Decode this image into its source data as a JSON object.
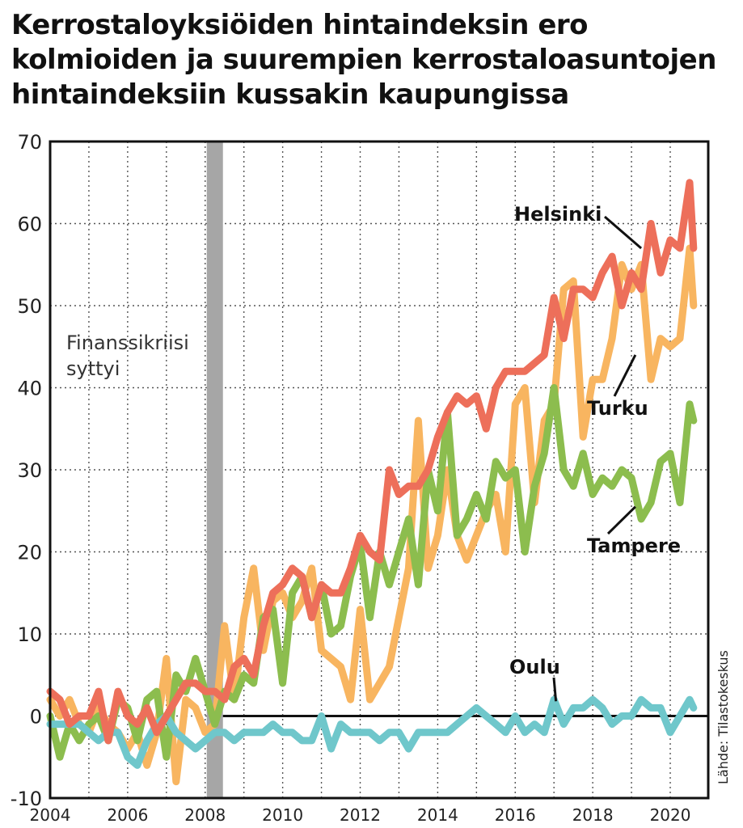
{
  "chart_data": {
    "type": "line",
    "title": "Kerrostaloyksiöiden hintaindeksin ero\nkolmioiden ja suurempien kerrostaloasuntojen\nhintaindeksiin kussakin kaupungissa",
    "xlabel": "",
    "ylabel": "",
    "xlim": [
      2004,
      2020.6
    ],
    "ylim": [
      -10,
      70
    ],
    "x_ticks": [
      "2004",
      "2006",
      "2008",
      "2010",
      "2012",
      "2014",
      "2016",
      "2018",
      "2020"
    ],
    "y_ticks": [
      "70",
      "60",
      "50",
      "40",
      "30",
      "20",
      "10",
      "0",
      "-10"
    ],
    "grid": true,
    "annotations": [
      {
        "text": "Finanssikriisi\nsyttyi",
        "x": 2008.25,
        "type": "band"
      }
    ],
    "source": "Lähde: Tilastokeskus",
    "series": [
      {
        "name": "Helsinki",
        "color": "#ed6f5a",
        "points": [
          [
            2004.0,
            3
          ],
          [
            2004.25,
            2
          ],
          [
            2004.5,
            -1
          ],
          [
            2004.75,
            0
          ],
          [
            2005.0,
            0
          ],
          [
            2005.25,
            3
          ],
          [
            2005.5,
            -3
          ],
          [
            2005.75,
            3
          ],
          [
            2006.0,
            0
          ],
          [
            2006.25,
            -1
          ],
          [
            2006.5,
            1
          ],
          [
            2006.75,
            -2
          ],
          [
            2007.0,
            0
          ],
          [
            2007.25,
            2
          ],
          [
            2007.5,
            4
          ],
          [
            2007.75,
            4
          ],
          [
            2008.0,
            3
          ],
          [
            2008.25,
            3
          ],
          [
            2008.5,
            2
          ],
          [
            2008.75,
            6
          ],
          [
            2009.0,
            7
          ],
          [
            2009.25,
            5
          ],
          [
            2009.5,
            11
          ],
          [
            2009.75,
            15
          ],
          [
            2010.0,
            16
          ],
          [
            2010.25,
            18
          ],
          [
            2010.5,
            17
          ],
          [
            2010.75,
            12
          ],
          [
            2011.0,
            16
          ],
          [
            2011.25,
            15
          ],
          [
            2011.5,
            15
          ],
          [
            2011.75,
            18
          ],
          [
            2012.0,
            22
          ],
          [
            2012.25,
            20
          ],
          [
            2012.5,
            19
          ],
          [
            2012.75,
            30
          ],
          [
            2013.0,
            27
          ],
          [
            2013.25,
            28
          ],
          [
            2013.5,
            28
          ],
          [
            2013.75,
            30
          ],
          [
            2014.0,
            34
          ],
          [
            2014.25,
            37
          ],
          [
            2014.5,
            39
          ],
          [
            2014.75,
            38
          ],
          [
            2015.0,
            39
          ],
          [
            2015.25,
            35
          ],
          [
            2015.5,
            40
          ],
          [
            2015.75,
            42
          ],
          [
            2016.0,
            42
          ],
          [
            2016.25,
            42
          ],
          [
            2016.5,
            43
          ],
          [
            2016.75,
            44
          ],
          [
            2017.0,
            51
          ],
          [
            2017.25,
            46
          ],
          [
            2017.5,
            52
          ],
          [
            2017.75,
            52
          ],
          [
            2018.0,
            51
          ],
          [
            2018.25,
            54
          ],
          [
            2018.5,
            56
          ],
          [
            2018.75,
            50
          ],
          [
            2019.0,
            54
          ],
          [
            2019.25,
            52
          ],
          [
            2019.5,
            60
          ],
          [
            2019.75,
            54
          ],
          [
            2020.0,
            58
          ],
          [
            2020.25,
            57
          ],
          [
            2020.5,
            65
          ],
          [
            2020.6,
            57
          ]
        ]
      },
      {
        "name": "Turku",
        "color": "#f8b560",
        "points": [
          [
            2004.0,
            2
          ],
          [
            2004.25,
            0
          ],
          [
            2004.5,
            2
          ],
          [
            2004.75,
            -1
          ],
          [
            2005.0,
            -2
          ],
          [
            2005.25,
            1
          ],
          [
            2005.5,
            -1
          ],
          [
            2005.75,
            -2
          ],
          [
            2006.0,
            -4
          ],
          [
            2006.25,
            -2
          ],
          [
            2006.5,
            -6
          ],
          [
            2006.75,
            -2
          ],
          [
            2007.0,
            7
          ],
          [
            2007.25,
            -8
          ],
          [
            2007.5,
            2
          ],
          [
            2007.75,
            1
          ],
          [
            2008.0,
            -2
          ],
          [
            2008.25,
            -1
          ],
          [
            2008.5,
            11
          ],
          [
            2008.75,
            2
          ],
          [
            2009.0,
            12
          ],
          [
            2009.25,
            18
          ],
          [
            2009.5,
            8
          ],
          [
            2009.75,
            14
          ],
          [
            2010.0,
            15
          ],
          [
            2010.25,
            12
          ],
          [
            2010.5,
            14
          ],
          [
            2010.75,
            18
          ],
          [
            2011.0,
            8
          ],
          [
            2011.25,
            7
          ],
          [
            2011.5,
            6
          ],
          [
            2011.75,
            2
          ],
          [
            2012.0,
            13
          ],
          [
            2012.25,
            2
          ],
          [
            2012.5,
            4
          ],
          [
            2012.75,
            6
          ],
          [
            2013.0,
            12
          ],
          [
            2013.25,
            18
          ],
          [
            2013.5,
            36
          ],
          [
            2013.75,
            18
          ],
          [
            2014.0,
            22
          ],
          [
            2014.25,
            30
          ],
          [
            2014.5,
            22
          ],
          [
            2014.75,
            19
          ],
          [
            2015.0,
            22
          ],
          [
            2015.25,
            25
          ],
          [
            2015.5,
            27
          ],
          [
            2015.75,
            20
          ],
          [
            2016.0,
            38
          ],
          [
            2016.25,
            40
          ],
          [
            2016.5,
            26
          ],
          [
            2016.75,
            36
          ],
          [
            2017.0,
            38
          ],
          [
            2017.25,
            52
          ],
          [
            2017.5,
            53
          ],
          [
            2017.75,
            34
          ],
          [
            2018.0,
            41
          ],
          [
            2018.25,
            41
          ],
          [
            2018.5,
            46
          ],
          [
            2018.75,
            55
          ],
          [
            2019.0,
            52
          ],
          [
            2019.25,
            55
          ],
          [
            2019.5,
            41
          ],
          [
            2019.75,
            46
          ],
          [
            2020.0,
            45
          ],
          [
            2020.25,
            46
          ],
          [
            2020.5,
            57
          ],
          [
            2020.6,
            50
          ]
        ]
      },
      {
        "name": "Tampere",
        "color": "#8cbd4e",
        "points": [
          [
            2004.0,
            0
          ],
          [
            2004.25,
            -5
          ],
          [
            2004.5,
            -1
          ],
          [
            2004.75,
            -3
          ],
          [
            2005.0,
            -1
          ],
          [
            2005.25,
            0
          ],
          [
            2005.5,
            -3
          ],
          [
            2005.75,
            2
          ],
          [
            2006.0,
            1
          ],
          [
            2006.25,
            -3
          ],
          [
            2006.5,
            2
          ],
          [
            2006.75,
            3
          ],
          [
            2007.0,
            -5
          ],
          [
            2007.25,
            5
          ],
          [
            2007.5,
            3
          ],
          [
            2007.75,
            7
          ],
          [
            2008.0,
            3
          ],
          [
            2008.25,
            -1
          ],
          [
            2008.5,
            3
          ],
          [
            2008.75,
            2
          ],
          [
            2009.0,
            5
          ],
          [
            2009.25,
            4
          ],
          [
            2009.5,
            12
          ],
          [
            2009.75,
            13
          ],
          [
            2010.0,
            4
          ],
          [
            2010.25,
            15
          ],
          [
            2010.5,
            17
          ],
          [
            2010.75,
            12
          ],
          [
            2011.0,
            16
          ],
          [
            2011.25,
            10
          ],
          [
            2011.5,
            11
          ],
          [
            2011.75,
            17
          ],
          [
            2012.0,
            21
          ],
          [
            2012.25,
            12
          ],
          [
            2012.5,
            20
          ],
          [
            2012.75,
            16
          ],
          [
            2013.0,
            20
          ],
          [
            2013.25,
            24
          ],
          [
            2013.5,
            16
          ],
          [
            2013.75,
            30
          ],
          [
            2014.0,
            25
          ],
          [
            2014.25,
            37
          ],
          [
            2014.5,
            22
          ],
          [
            2014.75,
            24
          ],
          [
            2015.0,
            27
          ],
          [
            2015.25,
            24
          ],
          [
            2015.5,
            31
          ],
          [
            2015.75,
            29
          ],
          [
            2016.0,
            30
          ],
          [
            2016.25,
            20
          ],
          [
            2016.5,
            28
          ],
          [
            2016.75,
            32
          ],
          [
            2017.0,
            40
          ],
          [
            2017.25,
            30
          ],
          [
            2017.5,
            28
          ],
          [
            2017.75,
            32
          ],
          [
            2018.0,
            27
          ],
          [
            2018.25,
            29
          ],
          [
            2018.5,
            28
          ],
          [
            2018.75,
            30
          ],
          [
            2019.0,
            29
          ],
          [
            2019.25,
            24
          ],
          [
            2019.5,
            26
          ],
          [
            2019.75,
            31
          ],
          [
            2020.0,
            32
          ],
          [
            2020.25,
            26
          ],
          [
            2020.5,
            38
          ],
          [
            2020.6,
            36
          ]
        ]
      },
      {
        "name": "Oulu",
        "color": "#6fc7cb",
        "points": [
          [
            2004.0,
            -1
          ],
          [
            2004.25,
            -1
          ],
          [
            2004.5,
            -1
          ],
          [
            2004.75,
            -1
          ],
          [
            2005.0,
            -2
          ],
          [
            2005.25,
            -3
          ],
          [
            2005.5,
            -2
          ],
          [
            2005.75,
            -2
          ],
          [
            2006.0,
            -5
          ],
          [
            2006.25,
            -6
          ],
          [
            2006.5,
            -3
          ],
          [
            2006.75,
            -1
          ],
          [
            2007.0,
            0
          ],
          [
            2007.25,
            -2
          ],
          [
            2007.5,
            -3
          ],
          [
            2007.75,
            -4
          ],
          [
            2008.0,
            -3
          ],
          [
            2008.25,
            -2
          ],
          [
            2008.5,
            -2
          ],
          [
            2008.75,
            -3
          ],
          [
            2009.0,
            -2
          ],
          [
            2009.25,
            -2
          ],
          [
            2009.5,
            -2
          ],
          [
            2009.75,
            -1
          ],
          [
            2010.0,
            -2
          ],
          [
            2010.25,
            -2
          ],
          [
            2010.5,
            -3
          ],
          [
            2010.75,
            -3
          ],
          [
            2011.0,
            0
          ],
          [
            2011.25,
            -4
          ],
          [
            2011.5,
            -1
          ],
          [
            2011.75,
            -2
          ],
          [
            2012.0,
            -2
          ],
          [
            2012.25,
            -2
          ],
          [
            2012.5,
            -3
          ],
          [
            2012.75,
            -2
          ],
          [
            2013.0,
            -2
          ],
          [
            2013.25,
            -4
          ],
          [
            2013.5,
            -2
          ],
          [
            2013.75,
            -2
          ],
          [
            2014.0,
            -2
          ],
          [
            2014.25,
            -2
          ],
          [
            2014.5,
            -1
          ],
          [
            2014.75,
            0
          ],
          [
            2015.0,
            1
          ],
          [
            2015.25,
            0
          ],
          [
            2015.5,
            -1
          ],
          [
            2015.75,
            -2
          ],
          [
            2016.0,
            0
          ],
          [
            2016.25,
            -2
          ],
          [
            2016.5,
            -1
          ],
          [
            2016.75,
            -2
          ],
          [
            2017.0,
            2
          ],
          [
            2017.25,
            -1
          ],
          [
            2017.5,
            1
          ],
          [
            2017.75,
            1
          ],
          [
            2018.0,
            2
          ],
          [
            2018.25,
            1
          ],
          [
            2018.5,
            -1
          ],
          [
            2018.75,
            0
          ],
          [
            2019.0,
            0
          ],
          [
            2019.25,
            2
          ],
          [
            2019.5,
            1
          ],
          [
            2019.75,
            1
          ],
          [
            2020.0,
            -2
          ],
          [
            2020.25,
            0
          ],
          [
            2020.5,
            2
          ],
          [
            2020.6,
            1
          ]
        ]
      }
    ]
  }
}
